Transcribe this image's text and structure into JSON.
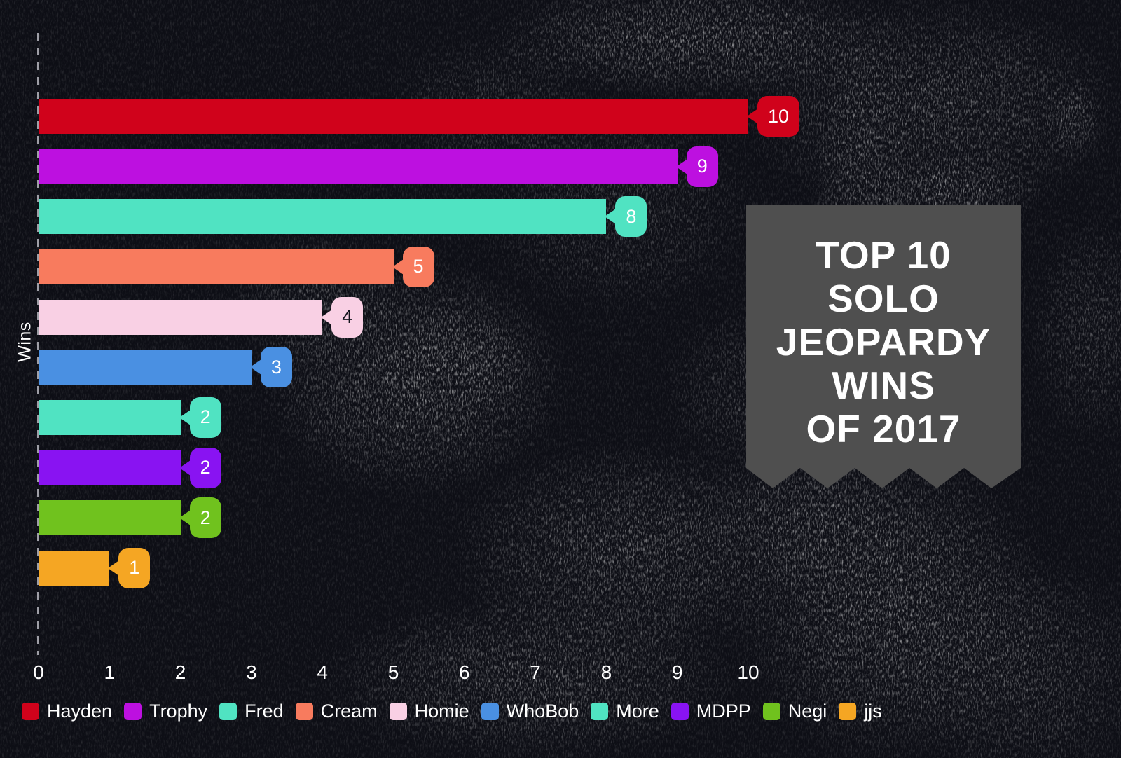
{
  "background": {
    "base_color": "#0d0e15",
    "noise_color": "#ffffff"
  },
  "banner": {
    "lines": [
      "TOP 10",
      "SOLO",
      "JEOPARDY",
      "WINS",
      "OF 2017"
    ],
    "bg_color": "#4f4f4f",
    "text_color": "#ffffff"
  },
  "chart_data": {
    "type": "bar",
    "orientation": "horizontal",
    "title": "TOP 10 SOLO JEOPARDY WINS OF 2017",
    "xlabel": "",
    "ylabel": "Wins",
    "xlim": [
      0,
      10
    ],
    "x_ticks": [
      "0",
      "1",
      "2",
      "3",
      "4",
      "5",
      "6",
      "7",
      "8",
      "9",
      "10"
    ],
    "grid": false,
    "legend_position": "bottom",
    "categories": [
      "Hayden",
      "Trophy",
      "Fred",
      "Cream",
      "Homie",
      "WhoBob",
      "More",
      "MDPP",
      "Negi",
      "jjs"
    ],
    "values": [
      10,
      9,
      8,
      5,
      4,
      3,
      2,
      2,
      2,
      1
    ],
    "series": [
      {
        "name": "Hayden",
        "value": 10,
        "color": "#d0021b",
        "value_text_color": "#ffffff"
      },
      {
        "name": "Trophy",
        "value": 9,
        "color": "#bd10e0",
        "value_text_color": "#ffffff"
      },
      {
        "name": "Fred",
        "value": 8,
        "color": "#50e3c2",
        "value_text_color": "#ffffff"
      },
      {
        "name": "Cream",
        "value": 5,
        "color": "#f87b5e",
        "value_text_color": "#ffffff"
      },
      {
        "name": "Homie",
        "value": 4,
        "color": "#f9d0e4",
        "value_text_color": "#14151d"
      },
      {
        "name": "WhoBob",
        "value": 3,
        "color": "#4a90e2",
        "value_text_color": "#ffffff"
      },
      {
        "name": "More",
        "value": 2,
        "color": "#50e3c2",
        "value_text_color": "#ffffff"
      },
      {
        "name": "MDPP",
        "value": 2,
        "color": "#8913f2",
        "value_text_color": "#ffffff"
      },
      {
        "name": "Negi",
        "value": 2,
        "color": "#70c21e",
        "value_text_color": "#ffffff"
      },
      {
        "name": "jjs",
        "value": 1,
        "color": "#f5a623",
        "value_text_color": "#ffffff"
      }
    ]
  },
  "axis": {
    "tick_color": "#ffffff",
    "dash_color": "#b7b7bf"
  }
}
